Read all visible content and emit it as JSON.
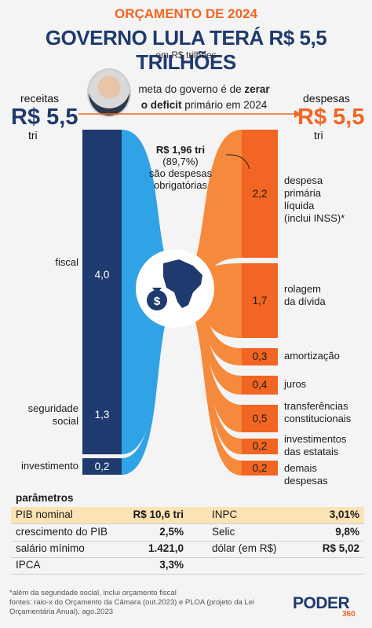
{
  "header": {
    "kicker": "ORÇAMENTO DE 2024",
    "title": "GOVERNO LULA TERÁ R$ 5,5 TRILHÕES",
    "subtitle": "em R$ trilhões"
  },
  "receitas": {
    "label": "receitas",
    "value": "R$ 5,5",
    "unit": "tri"
  },
  "despesas": {
    "label": "despesas",
    "value": "R$ 5,5",
    "unit": "tri"
  },
  "goal": {
    "pre": "meta do governo é de ",
    "bold1": "zerar",
    "bold2": "o deficit",
    "post": " primário em 2024"
  },
  "annotation": [
    "R$ 1,96 tri",
    "(89,7%)",
    "são despesas",
    "obrigatórias"
  ],
  "chart_data": {
    "type": "sankey",
    "unit": "R$ trilhões",
    "sources": [
      {
        "name": "fiscal",
        "value": 4.0,
        "label": "4,0"
      },
      {
        "name": "seguridade social",
        "value": 1.3,
        "label": "1,3"
      },
      {
        "name": "investimento",
        "value": 0.2,
        "label": "0,2"
      }
    ],
    "targets": [
      {
        "name": "despesa primária líquida (inclui INSS)*",
        "value": 2.2,
        "label": "2,2"
      },
      {
        "name": "rolagem da dívida",
        "value": 1.7,
        "label": "1,7"
      },
      {
        "name": "amortização",
        "value": 0.3,
        "label": "0,3"
      },
      {
        "name": "juros",
        "value": 0.4,
        "label": "0,4"
      },
      {
        "name": "transferências constitucionais",
        "value": 0.5,
        "label": "0,5"
      },
      {
        "name": "investimentos das estatais",
        "value": 0.2,
        "label": "0,2"
      },
      {
        "name": "demais despesas",
        "value": 0.2,
        "label": "0,2"
      }
    ],
    "source_labels": {
      "fiscal": [
        "fiscal"
      ],
      "seguridade": [
        "seguridade",
        "social"
      ],
      "investimento": [
        "investimento"
      ]
    },
    "target_labels": {
      "primaria": [
        "despesa",
        "primária",
        "líquida",
        "(inclui INSS)*"
      ],
      "rolagem": [
        "rolagem",
        "da dívida"
      ],
      "amortizacao": [
        "amortização"
      ],
      "juros": [
        "juros"
      ],
      "transferencias": [
        "transferências",
        "constitucionais"
      ],
      "estatais": [
        "investimentos",
        "das estatais"
      ],
      "demais": [
        "demais",
        "despesas"
      ]
    },
    "colors": {
      "receitas": "#1e3a6e",
      "receitas_flow": "#2fa3e6",
      "despesas": "#f26522",
      "despesas_flow": "#f58a3c"
    }
  },
  "params": {
    "title": "parâmetros",
    "rows": [
      {
        "l_name": "PIB nominal",
        "l_val": "R$ 10,6 tri",
        "r_name": "INPC",
        "r_val": "3,01%"
      },
      {
        "l_name": "crescimento do PIB",
        "l_val": "2,5%",
        "r_name": "Selic",
        "r_val": "9,8%"
      },
      {
        "l_name": "salário mínimo",
        "l_val": "1.421,0",
        "r_name": "dólar (em R$)",
        "r_val": "R$ 5,02"
      },
      {
        "l_name": "IPCA",
        "l_val": "3,3%",
        "r_name": "",
        "r_val": ""
      }
    ]
  },
  "footer": {
    "note": "*além da seguridade social, inclui orçamento fiscal",
    "sources": "fontes: raio-x do Orçamento da Câmara (out.2023) e PLOA (projeto da Lei Orçamentária Anual), ago.2023"
  },
  "logo": {
    "name": "PODER",
    "num": "360"
  }
}
